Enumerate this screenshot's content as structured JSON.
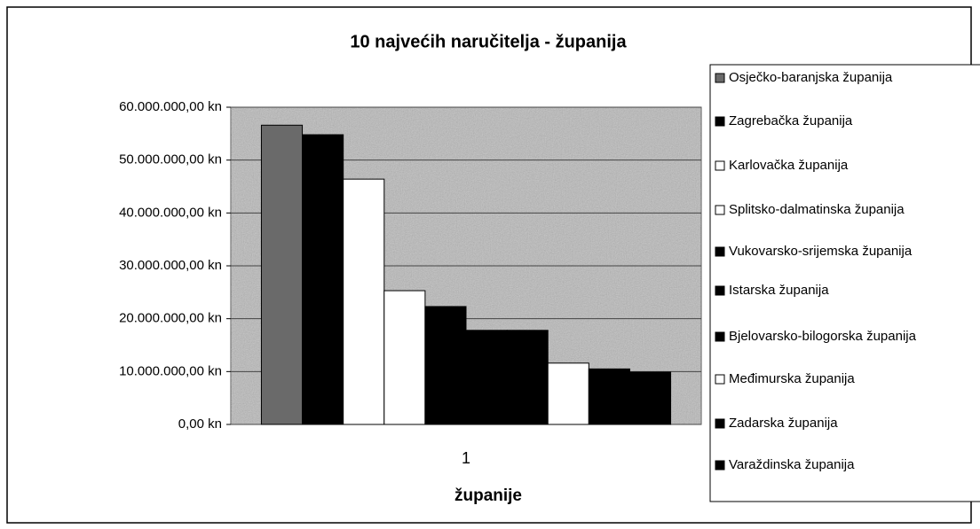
{
  "chart_data": {
    "type": "bar",
    "title": "10 najvećih naručitelja - županija",
    "categories": [
      "1"
    ],
    "x_label": "županije",
    "series": [
      {
        "name": "Osječko-baranjska županija",
        "color": "#6a6a6a",
        "values": [
          56600000
        ]
      },
      {
        "name": "Zagrebačka županija",
        "color": "#000000",
        "values": [
          54800000
        ]
      },
      {
        "name": "Karlovačka županija",
        "color": "#ffffff",
        "values": [
          46400000
        ]
      },
      {
        "name": "Splitsko-dalmatinska županija",
        "color": "#ffffff",
        "values": [
          25300000
        ]
      },
      {
        "name": "Vukovarsko-srijemska županija",
        "color": "#000000",
        "values": [
          22300000
        ]
      },
      {
        "name": "Istarska županija",
        "color": "#000000",
        "values": [
          17800000
        ]
      },
      {
        "name": "Bjelovarsko-bilogorska županija",
        "color": "#000000",
        "values": [
          17800000
        ]
      },
      {
        "name": "Međimurska županija",
        "color": "#ffffff",
        "values": [
          11600000
        ]
      },
      {
        "name": "Zadarska županija",
        "color": "#000000",
        "values": [
          10500000
        ]
      },
      {
        "name": "Varaždinska županija",
        "color": "#000000",
        "values": [
          9900000
        ]
      }
    ],
    "ylim": [
      0,
      60000000
    ],
    "yticks": [
      {
        "value": 0,
        "label": "0,00 kn"
      },
      {
        "value": 10000000,
        "label": "10.000.000,00 kn"
      },
      {
        "value": 20000000,
        "label": "20.000.000,00 kn"
      },
      {
        "value": 30000000,
        "label": "30.000.000,00 kn"
      },
      {
        "value": 40000000,
        "label": "40.000.000,00 kn"
      },
      {
        "value": 50000000,
        "label": "50.000.000,00 kn"
      },
      {
        "value": 60000000,
        "label": "60.000.000,00 kn"
      }
    ],
    "grid": true
  }
}
